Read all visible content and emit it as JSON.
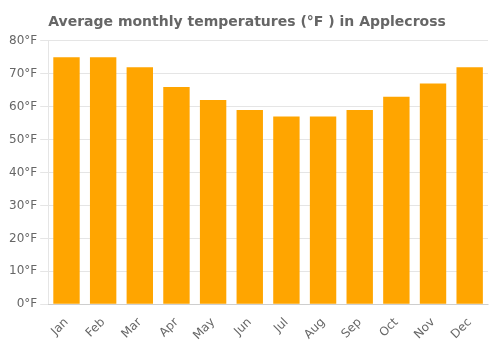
{
  "chart_data": {
    "type": "bar",
    "title": "Average monthly temperatures (°F ) in Applecross",
    "categories": [
      "Jan",
      "Feb",
      "Mar",
      "Apr",
      "May",
      "Jun",
      "Jul",
      "Aug",
      "Sep",
      "Oct",
      "Nov",
      "Dec"
    ],
    "values": [
      75,
      75,
      72,
      66,
      62,
      59,
      57,
      57,
      59,
      63,
      67,
      72
    ],
    "color": "#FFA500",
    "ylim": [
      0,
      80
    ],
    "yticks": [
      {
        "value": 0,
        "label": "0°F"
      },
      {
        "value": 10,
        "label": "10°F"
      },
      {
        "value": 20,
        "label": "20°F"
      },
      {
        "value": 30,
        "label": "30°F"
      },
      {
        "value": 40,
        "label": "40°F"
      },
      {
        "value": 50,
        "label": "50°F"
      },
      {
        "value": 60,
        "label": "60°F"
      },
      {
        "value": 70,
        "label": "70°F"
      },
      {
        "value": 80,
        "label": "80°F"
      }
    ],
    "grid": true
  }
}
